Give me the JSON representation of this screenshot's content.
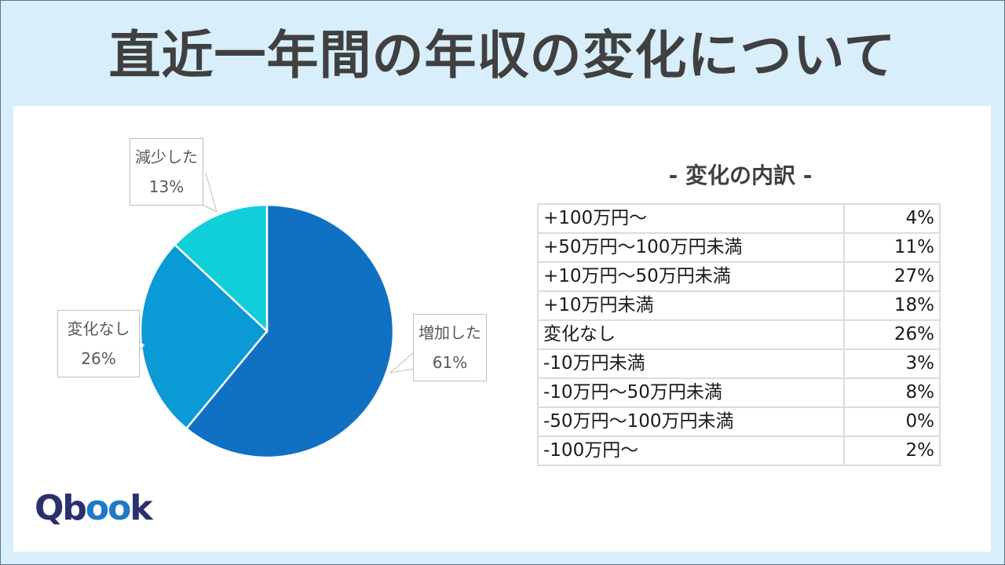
{
  "page": {
    "title": "直近一年間の年収の変化について",
    "breakdown_title": "- 変化の内訳 -",
    "logo": {
      "q": "Q",
      "b": "b",
      "oo": "oo",
      "k": "k",
      "full": "Qbook"
    }
  },
  "colors": {
    "increase": "#1070c4",
    "no_change": "#0a9ad6",
    "decrease": "#10cfd8",
    "background": "#d8eefa",
    "title_text": "#404040"
  },
  "chart_data": [
    {
      "type": "pie",
      "title": "",
      "categories": [
        "増加した",
        "変化なし",
        "減少した"
      ],
      "values": [
        61,
        26,
        13
      ],
      "unit": "%",
      "labels": [
        {
          "name": "増加した",
          "value": "61%"
        },
        {
          "name": "変化なし",
          "value": "26%"
        },
        {
          "name": "減少した",
          "value": "13%"
        }
      ],
      "start_angle": "12 o'clock, clockwise",
      "legend": "none (callout labels)"
    },
    {
      "type": "table",
      "title": "- 変化の内訳 -",
      "rows": [
        {
          "label": "+100万円～",
          "value": "4%"
        },
        {
          "label": "+50万円～100万円未満",
          "value": "11%"
        },
        {
          "label": "+10万円～50万円未満",
          "value": "27%"
        },
        {
          "label": "+10万円未満",
          "value": "18%"
        },
        {
          "label": "変化なし",
          "value": "26%"
        },
        {
          "label": "-10万円未満",
          "value": "3%"
        },
        {
          "label": "-10万円～50万円未満",
          "value": "8%"
        },
        {
          "label": "-50万円～100万円未満",
          "value": "0%"
        },
        {
          "label": "-100万円～",
          "value": "2%"
        }
      ]
    }
  ]
}
